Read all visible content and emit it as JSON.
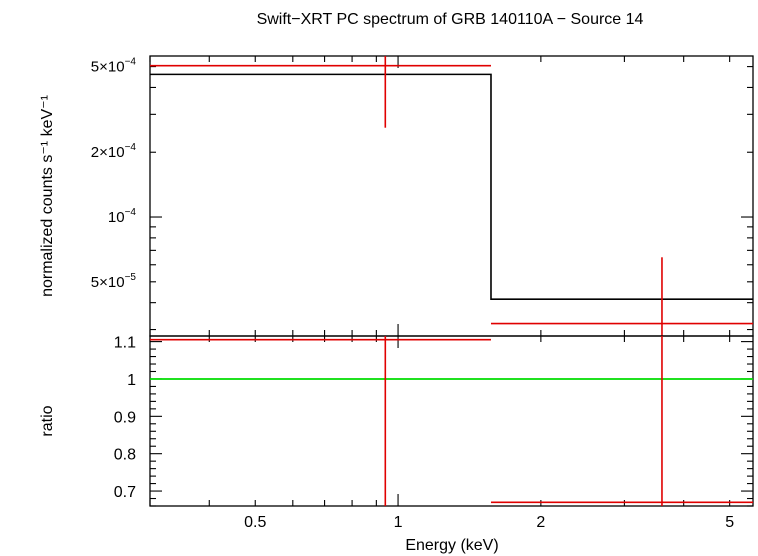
{
  "title": "Swift−XRT PC spectrum of GRB 140110A − Source 14",
  "colors": {
    "data": "#e00000",
    "model": "#000000",
    "unity": "#00dd00",
    "frame": "#000000"
  },
  "chart_data": [
    {
      "type": "line",
      "panel": "spectrum",
      "xscale": "log",
      "yscale": "log",
      "xlim": [
        0.3,
        5.6
      ],
      "ylim": [
        2.8e-05,
        0.00056
      ],
      "ylabel": "normalized counts s⁻¹ keV⁻¹",
      "ytick_labels": [
        {
          "value": 0.0005,
          "mant": "5×10",
          "exp": "−4"
        },
        {
          "value": 0.0002,
          "mant": "2×10",
          "exp": "−4"
        },
        {
          "value": 0.0001,
          "mant": "10",
          "exp": "−4"
        },
        {
          "value": 5e-05,
          "mant": "5×10",
          "exp": "−5"
        }
      ],
      "series": [
        {
          "role": "data",
          "points": [
            {
              "x": 0.94,
              "xlo": 0.3,
              "xhi": 1.57,
              "y": 0.000505,
              "ylo": 0.00026,
              "yhi": 0.00056
            },
            {
              "x": 3.6,
              "xlo": 1.57,
              "xhi": 5.6,
              "y": 3.2e-05,
              "ylo": 2.8e-05,
              "yhi": 6.5e-05
            }
          ]
        },
        {
          "role": "model",
          "steps": [
            {
              "xlo": 0.3,
              "xhi": 1.57,
              "y": 0.00046
            },
            {
              "xlo": 1.57,
              "xhi": 5.6,
              "y": 4.15e-05
            }
          ]
        }
      ]
    },
    {
      "type": "line",
      "panel": "ratio",
      "xscale": "log",
      "yscale": "linear",
      "xlim": [
        0.3,
        5.6
      ],
      "ylim": [
        0.66,
        1.115
      ],
      "xlabel": "Energy (keV)",
      "ylabel": "ratio",
      "xtick_labels": [
        {
          "value": 0.5,
          "label": "0.5"
        },
        {
          "value": 1,
          "label": "1"
        },
        {
          "value": 2,
          "label": "2"
        },
        {
          "value": 5,
          "label": "5"
        }
      ],
      "ytick_labels": [
        {
          "value": 1.1,
          "label": "1.1"
        },
        {
          "value": 1.0,
          "label": "1"
        },
        {
          "value": 0.9,
          "label": "0.9"
        },
        {
          "value": 0.8,
          "label": "0.8"
        },
        {
          "value": 0.7,
          "label": "0.7"
        }
      ],
      "unity": 1.0,
      "series": [
        {
          "role": "data",
          "points": [
            {
              "x": 0.94,
              "xlo": 0.3,
              "xhi": 1.57,
              "y": 1.105,
              "ylo": 0.66,
              "yhi": 1.115
            },
            {
              "x": 3.6,
              "xlo": 1.57,
              "xhi": 5.6,
              "y": 0.67,
              "ylo": 0.66,
              "yhi": 1.115
            }
          ]
        }
      ]
    }
  ]
}
